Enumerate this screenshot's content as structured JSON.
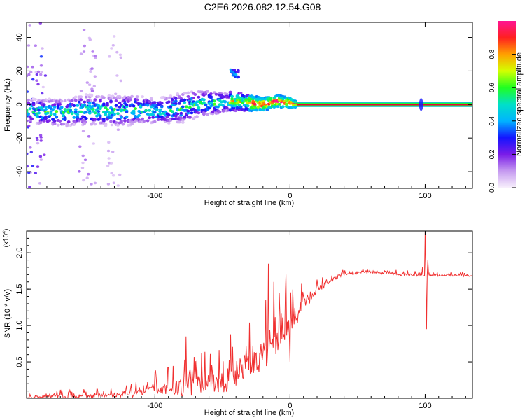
{
  "title": "C2E6.2026.082.12.54.G08",
  "colors": {
    "snr_line": "#f03030",
    "axis": "#000000",
    "spectrum_centre": "#e8003c",
    "spectrum_band": "#18c8c8"
  },
  "chart_data": [
    {
      "type": "heatmap",
      "name": "spectrogram",
      "xlabel": "Height of straight line (km)",
      "ylabel": "Frequency (Hz)",
      "xlim": [
        -195,
        135
      ],
      "ylim": [
        -50,
        49
      ],
      "xticks": [
        -100,
        0,
        100
      ],
      "xtick_labels": [
        "-100",
        "0",
        "100"
      ],
      "yticks": [
        -40,
        -20,
        0,
        20,
        40
      ],
      "ytick_labels": [
        "-40",
        "-20",
        "0",
        "20",
        "40"
      ],
      "colorbar": {
        "label": "Normalized spectral amplitude",
        "range": [
          0,
          1
        ],
        "ticks": [
          0.0,
          0.2,
          0.4,
          0.6,
          0.8
        ],
        "tick_labels": [
          "0.0",
          "0.2",
          "0.4",
          "0.6",
          "0.8"
        ],
        "stops": [
          {
            "v": 0.0,
            "c": "#f8f0fc"
          },
          {
            "v": 0.1,
            "c": "#c59af0"
          },
          {
            "v": 0.2,
            "c": "#7a1ce8"
          },
          {
            "v": 0.3,
            "c": "#1414ff"
          },
          {
            "v": 0.4,
            "c": "#00b4ff"
          },
          {
            "v": 0.5,
            "c": "#00e0c8"
          },
          {
            "v": 0.6,
            "c": "#20ff20"
          },
          {
            "v": 0.7,
            "c": "#d4ff00"
          },
          {
            "v": 0.8,
            "c": "#ffa000"
          },
          {
            "v": 0.9,
            "c": "#ff2020"
          },
          {
            "v": 1.0,
            "c": "#ff1493"
          }
        ]
      },
      "tone": {
        "x_start": 5,
        "x_end": 135,
        "freq": 0
      },
      "band_centre_track": [
        [
          -190,
          -4
        ],
        [
          -170,
          -5
        ],
        [
          -150,
          -3
        ],
        [
          -130,
          -4
        ],
        [
          -110,
          -3
        ],
        [
          -100,
          -4
        ],
        [
          -90,
          -3
        ],
        [
          -80,
          -2
        ],
        [
          -70,
          0
        ],
        [
          -60,
          1
        ],
        [
          -50,
          1
        ],
        [
          -40,
          2
        ],
        [
          -30,
          1
        ],
        [
          -20,
          0
        ],
        [
          -10,
          2
        ],
        [
          0,
          1
        ],
        [
          5,
          0
        ]
      ],
      "band_width_track": [
        [
          -190,
          10
        ],
        [
          -150,
          12
        ],
        [
          -120,
          12
        ],
        [
          -100,
          10
        ],
        [
          -80,
          12
        ],
        [
          -60,
          10
        ],
        [
          -40,
          7
        ],
        [
          -20,
          5
        ],
        [
          0,
          4
        ],
        [
          5,
          2
        ]
      ],
      "side_feature": {
        "x": [
          -44,
          -38
        ],
        "freq": [
          16,
          21
        ]
      },
      "streaks": [
        {
          "x": -190,
          "width": 18,
          "strength": 0.3
        },
        {
          "x": -150,
          "width": 12,
          "strength": 0.12
        },
        {
          "x": -130,
          "width": 10,
          "strength": 0.06
        }
      ],
      "blip": {
        "x": 97,
        "freq": 0
      }
    },
    {
      "type": "line",
      "name": "snr",
      "xlabel": "Height of straight line (km)",
      "ylabel": "SNR (10 * v/v)",
      "y_multiplier": "(x10",
      "y_multiplier_exp": "4",
      "y_multiplier_close": ")",
      "xlim": [
        -195,
        135
      ],
      "ylim": [
        0,
        2.3
      ],
      "xticks": [
        -100,
        0,
        100
      ],
      "xtick_labels": [
        "-100",
        "0",
        "100"
      ],
      "yticks": [
        0.5,
        1.0,
        1.5,
        2.0
      ],
      "ytick_labels": [
        "0.5",
        "1.0",
        "1.5",
        "2.0"
      ],
      "envelope": [
        [
          -195,
          0.02,
          0.02
        ],
        [
          -170,
          0.05,
          0.05
        ],
        [
          -150,
          0.06,
          0.05
        ],
        [
          -130,
          0.07,
          0.05
        ],
        [
          -120,
          0.09,
          0.07
        ],
        [
          -110,
          0.14,
          0.1
        ],
        [
          -100,
          0.18,
          0.13
        ],
        [
          -90,
          0.21,
          0.16
        ],
        [
          -80,
          0.25,
          0.2
        ],
        [
          -70,
          0.28,
          0.2
        ],
        [
          -60,
          0.32,
          0.22
        ],
        [
          -50,
          0.36,
          0.24
        ],
        [
          -40,
          0.42,
          0.26
        ],
        [
          -30,
          0.6,
          0.3
        ],
        [
          -20,
          0.8,
          0.35
        ],
        [
          -10,
          0.95,
          0.3
        ],
        [
          0,
          1.15,
          0.25
        ],
        [
          10,
          1.35,
          0.18
        ],
        [
          20,
          1.52,
          0.08
        ],
        [
          30,
          1.65,
          0.05
        ],
        [
          40,
          1.72,
          0.03
        ],
        [
          50,
          1.74,
          0.03
        ],
        [
          60,
          1.75,
          0.03
        ],
        [
          70,
          1.74,
          0.03
        ],
        [
          80,
          1.72,
          0.03
        ],
        [
          90,
          1.71,
          0.03
        ],
        [
          105,
          1.7,
          0.02
        ],
        [
          120,
          1.7,
          0.02
        ],
        [
          135,
          1.69,
          0.02
        ]
      ],
      "spikes": [
        [
          -77,
          0.85
        ],
        [
          -44,
          0.88
        ],
        [
          -16,
          1.85
        ],
        [
          -18,
          1.35
        ],
        [
          -12,
          1.6
        ],
        [
          -3,
          1.7
        ],
        [
          0,
          0.5
        ],
        [
          96,
          1.72
        ],
        [
          98,
          1.8
        ],
        [
          100,
          2.28
        ],
        [
          101,
          0.95
        ],
        [
          102,
          1.9
        ]
      ]
    }
  ]
}
